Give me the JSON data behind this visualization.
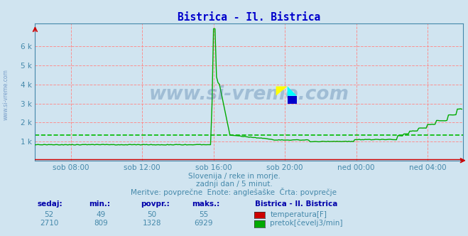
{
  "title": "Bistrica - Il. Bistrica",
  "title_color": "#0000cc",
  "bg_color": "#d0e4f0",
  "plot_bg_color": "#d0e4f0",
  "xlabel_color": "#4488aa",
  "ylabel_color": "#4488aa",
  "grid_color": "#ff8888",
  "axis_color": "#4488aa",
  "watermark": "www.si-vreme.com",
  "subtitle1": "Slovenija / reke in morje.",
  "subtitle2": "zadnji dan / 5 minut.",
  "subtitle3": "Meritve: povprečne  Enote: anglešaške  Črta: povprečje",
  "legend_title": "Bistrica - Il. Bistrica",
  "temp_label": "temperatura[F]",
  "flow_label": "pretok[čevelj3/min]",
  "temp_color": "#cc0000",
  "flow_color": "#00aa00",
  "avg_flow_color": "#00bb00",
  "avg_flow": 1328,
  "ylim": [
    0,
    7200
  ],
  "yticks": [
    1000,
    2000,
    3000,
    4000,
    5000,
    6000
  ],
  "ytick_labels": [
    "1 k",
    "2 k",
    "3 k",
    "4 k",
    "5 k",
    "6 k"
  ],
  "xtick_labels": [
    "sob 08:00",
    "sob 12:00",
    "sob 16:00",
    "sob 20:00",
    "ned 00:00",
    "ned 04:00"
  ],
  "table_headers": [
    "sedaj:",
    "min.:",
    "povpr.:",
    "maks.:"
  ],
  "temp_values": [
    52,
    49,
    50,
    55
  ],
  "flow_values": [
    2710,
    809,
    1328,
    6929
  ],
  "n_points": 288,
  "header_color": "#0000aa",
  "value_color": "#4488aa"
}
